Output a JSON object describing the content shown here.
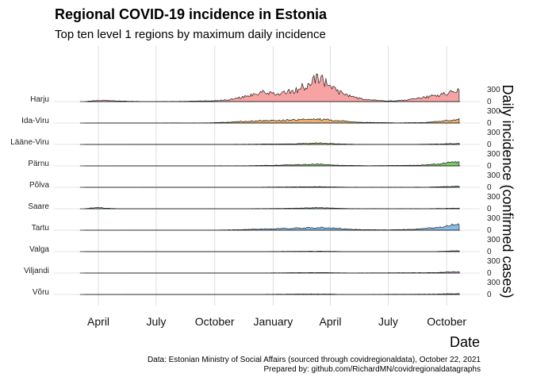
{
  "title": "Regional COVID-19 incidence in Estonia",
  "subtitle": "Top ten level 1 regions by maximum daily incidence",
  "caption": {
    "line1": "Data: Estonian Ministry of Social Affairs (sourced through covidregionaldata), October 22, 2021",
    "line2": "Prepared by: github.com/RichardMN/covidregionaldatagraphs"
  },
  "chart_data": {
    "type": "area",
    "layout": "ridgeline",
    "xlabel": "Date",
    "ylabel": "Daily incidence (confirmed cases)",
    "x_ticks": [
      {
        "date": "2020-04-01",
        "label": "April"
      },
      {
        "date": "2020-07-01",
        "label": "July"
      },
      {
        "date": "2020-10-01",
        "label": "October"
      },
      {
        "date": "2021-01-01",
        "label": "January"
      },
      {
        "date": "2021-04-01",
        "label": "April"
      },
      {
        "date": "2021-07-01",
        "label": "July"
      },
      {
        "date": "2021-10-01",
        "label": "October"
      }
    ],
    "xlim": [
      "2020-02-26",
      "2021-10-22"
    ],
    "y_ticks": [
      0,
      300
    ],
    "ylim": [
      0,
      420
    ],
    "grid": true,
    "series": [
      {
        "name": "Harju",
        "color": "#f8a3a3",
        "points": [
          [
            "2020-03-10",
            0
          ],
          [
            "2020-03-25",
            25
          ],
          [
            "2020-04-10",
            30
          ],
          [
            "2020-05-01",
            15
          ],
          [
            "2020-06-15",
            3
          ],
          [
            "2020-08-20",
            8
          ],
          [
            "2020-10-01",
            25
          ],
          [
            "2020-10-25",
            50
          ],
          [
            "2020-11-15",
            120
          ],
          [
            "2020-12-05",
            200
          ],
          [
            "2020-12-20",
            230
          ],
          [
            "2021-01-05",
            190
          ],
          [
            "2021-01-25",
            240
          ],
          [
            "2021-02-10",
            320
          ],
          [
            "2021-02-25",
            420
          ],
          [
            "2021-03-10",
            560
          ],
          [
            "2021-03-20",
            520
          ],
          [
            "2021-04-05",
            350
          ],
          [
            "2021-04-20",
            200
          ],
          [
            "2021-05-10",
            100
          ],
          [
            "2021-06-01",
            40
          ],
          [
            "2021-07-01",
            15
          ],
          [
            "2021-08-01",
            40
          ],
          [
            "2021-09-01",
            120
          ],
          [
            "2021-09-25",
            180
          ],
          [
            "2021-10-10",
            250
          ],
          [
            "2021-10-22",
            300
          ]
        ]
      },
      {
        "name": "Ida-Viru",
        "color": "#e8b06d",
        "points": [
          [
            "2020-03-10",
            0
          ],
          [
            "2020-05-01",
            3
          ],
          [
            "2020-09-20",
            5
          ],
          [
            "2020-11-01",
            30
          ],
          [
            "2020-12-15",
            60
          ],
          [
            "2021-01-15",
            65
          ],
          [
            "2021-02-15",
            85
          ],
          [
            "2021-03-15",
            95
          ],
          [
            "2021-04-15",
            60
          ],
          [
            "2021-05-15",
            20
          ],
          [
            "2021-07-15",
            5
          ],
          [
            "2021-09-01",
            15
          ],
          [
            "2021-10-01",
            60
          ],
          [
            "2021-10-22",
            95
          ]
        ]
      },
      {
        "name": "Lääne-Viru",
        "color": "#b8bd4a",
        "points": [
          [
            "2020-03-10",
            0
          ],
          [
            "2020-10-20",
            3
          ],
          [
            "2020-12-20",
            10
          ],
          [
            "2021-02-01",
            15
          ],
          [
            "2021-03-01",
            30
          ],
          [
            "2021-03-15",
            35
          ],
          [
            "2021-04-10",
            15
          ],
          [
            "2021-05-10",
            5
          ],
          [
            "2021-08-01",
            2
          ],
          [
            "2021-09-20",
            12
          ],
          [
            "2021-10-22",
            30
          ]
        ]
      },
      {
        "name": "Pärnu",
        "color": "#7cc66a",
        "points": [
          [
            "2020-03-10",
            0
          ],
          [
            "2020-11-20",
            5
          ],
          [
            "2021-01-10",
            20
          ],
          [
            "2021-02-10",
            30
          ],
          [
            "2021-03-15",
            45
          ],
          [
            "2021-04-15",
            15
          ],
          [
            "2021-06-01",
            5
          ],
          [
            "2021-08-15",
            15
          ],
          [
            "2021-09-15",
            50
          ],
          [
            "2021-10-10",
            90
          ],
          [
            "2021-10-22",
            110
          ]
        ]
      },
      {
        "name": "Põlva",
        "color": "#65c3a1",
        "points": [
          [
            "2020-03-10",
            0
          ],
          [
            "2020-12-01",
            3
          ],
          [
            "2021-02-15",
            12
          ],
          [
            "2021-03-15",
            15
          ],
          [
            "2021-05-01",
            4
          ],
          [
            "2021-09-01",
            5
          ],
          [
            "2021-10-01",
            18
          ],
          [
            "2021-10-22",
            30
          ]
        ]
      },
      {
        "name": "Saare",
        "color": "#7fc7d2",
        "points": [
          [
            "2020-03-10",
            0
          ],
          [
            "2020-03-22",
            20
          ],
          [
            "2020-04-02",
            30
          ],
          [
            "2020-04-12",
            15
          ],
          [
            "2020-04-30",
            3
          ],
          [
            "2020-10-01",
            2
          ],
          [
            "2021-01-01",
            6
          ],
          [
            "2021-02-15",
            15
          ],
          [
            "2021-03-10",
            30
          ],
          [
            "2021-03-25",
            20
          ],
          [
            "2021-05-01",
            5
          ],
          [
            "2021-09-01",
            4
          ],
          [
            "2021-10-22",
            15
          ]
        ]
      },
      {
        "name": "Tartu",
        "color": "#86bde8",
        "points": [
          [
            "2020-03-10",
            0
          ],
          [
            "2020-10-01",
            3
          ],
          [
            "2020-11-15",
            15
          ],
          [
            "2020-12-15",
            30
          ],
          [
            "2021-01-15",
            40
          ],
          [
            "2021-02-15",
            55
          ],
          [
            "2021-03-15",
            65
          ],
          [
            "2021-04-15",
            40
          ],
          [
            "2021-05-15",
            15
          ],
          [
            "2021-07-01",
            8
          ],
          [
            "2021-08-15",
            25
          ],
          [
            "2021-09-15",
            70
          ],
          [
            "2021-10-10",
            130
          ],
          [
            "2021-10-22",
            160
          ]
        ]
      },
      {
        "name": "Valga",
        "color": "#a9a4ee",
        "points": [
          [
            "2020-03-10",
            0
          ],
          [
            "2020-12-20",
            4
          ],
          [
            "2021-02-15",
            8
          ],
          [
            "2021-03-15",
            10
          ],
          [
            "2021-05-01",
            3
          ],
          [
            "2021-09-15",
            4
          ],
          [
            "2021-10-22",
            22
          ]
        ]
      },
      {
        "name": "Viljandi",
        "color": "#d796ee",
        "points": [
          [
            "2020-03-10",
            0
          ],
          [
            "2020-12-15",
            4
          ],
          [
            "2021-02-15",
            10
          ],
          [
            "2021-03-15",
            12
          ],
          [
            "2021-05-01",
            4
          ],
          [
            "2021-09-15",
            10
          ],
          [
            "2021-10-10",
            30
          ],
          [
            "2021-10-22",
            40
          ]
        ]
      },
      {
        "name": "Võru",
        "color": "#f09ad0",
        "points": [
          [
            "2020-03-10",
            0
          ],
          [
            "2020-12-15",
            4
          ],
          [
            "2021-02-15",
            10
          ],
          [
            "2021-03-15",
            10
          ],
          [
            "2021-05-01",
            3
          ],
          [
            "2021-09-15",
            8
          ],
          [
            "2021-10-10",
            20
          ],
          [
            "2021-10-22",
            25
          ]
        ]
      }
    ]
  }
}
